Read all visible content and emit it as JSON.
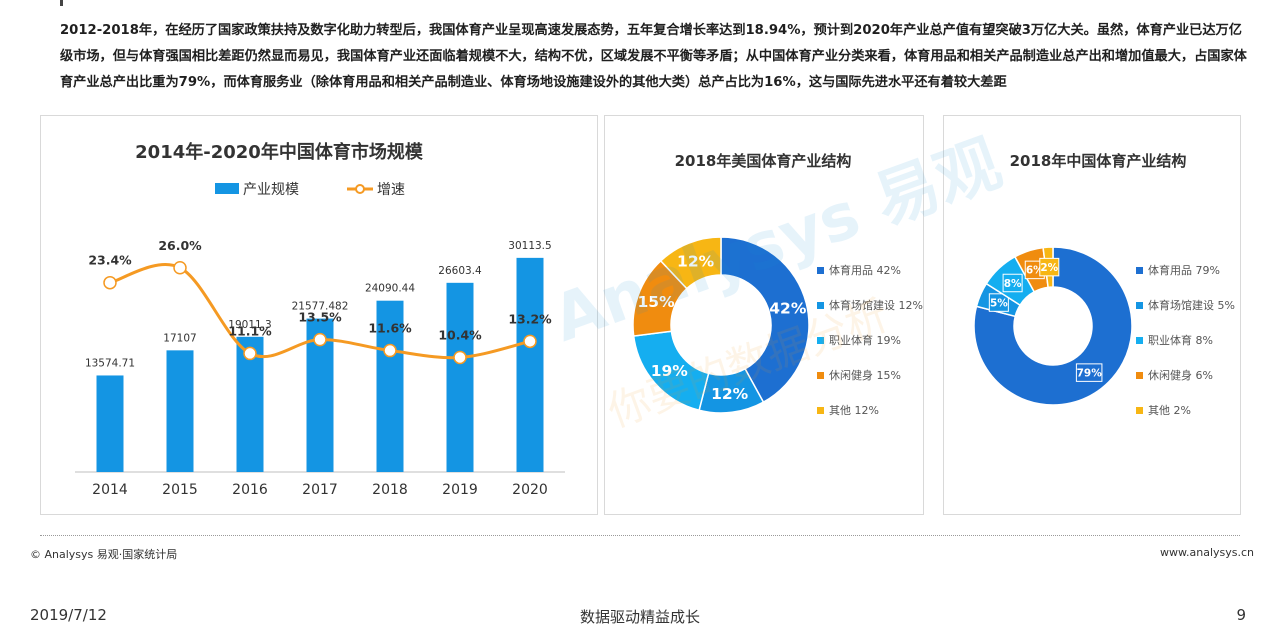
{
  "intro": "2012-2018年，在经历了国家政策扶持及数字化助力转型后，我国体育产业呈现高速发展态势，五年复合增长率达到18.94%，预计到2020年产业总产值有望突破3万亿大关。虽然，体育产业已达万亿级市场，但与体育强国相比差距仍然显而易见，我国体育产业还面临着规模不大，结构不优，区域发展不平衡等矛盾；从中国体育产业分类来看，体育用品和相关产品制造业总产出和增加值最大，占国家体育产业总产出比重为79%，而体育服务业（除体育用品和相关产品制造业、体育场地设施建设外的其他大类）总产占比为16%，这与国际先进水平还有着较大差距",
  "watermark": {
    "brand": "Analysys 易观",
    "slogan": "你要的数据分析"
  },
  "chart_data": [
    {
      "type": "bar",
      "title": "2014年-2020年中国体育市场规模",
      "legend": [
        "产业规模",
        "增速"
      ],
      "categories": [
        "2014",
        "2015",
        "2016",
        "2017",
        "2018",
        "2019",
        "2020"
      ],
      "series": [
        {
          "name": "产业规模",
          "type": "bar",
          "values": [
            13574.71,
            17107,
            19011.3,
            21577.482,
            24090.44,
            26603.4,
            30113.5
          ],
          "labels": [
            "13574.71",
            "17107",
            "19011.3",
            "21577.482",
            "24090.44",
            "26603.4",
            "30113.5"
          ]
        },
        {
          "name": "增速",
          "type": "line",
          "values": [
            23.4,
            26.0,
            11.1,
            13.5,
            11.6,
            10.4,
            13.2
          ],
          "labels": [
            "23.4%",
            "26.0%",
            "11.1%",
            "13.5%",
            "11.6%",
            "10.4%",
            "13.2%"
          ]
        }
      ],
      "ylim_bar": [
        0,
        45000
      ],
      "ylim_line": [
        -5,
        35
      ],
      "colors": {
        "bar": "#1495e3",
        "line": "#f59a23"
      }
    },
    {
      "type": "pie",
      "title": "2018年美国体育产业结构",
      "slices": [
        {
          "label": "体育用品",
          "value": 42,
          "text": "42%",
          "legend": "体育用品 42%",
          "color": "#1d6fd1"
        },
        {
          "label": "体育场馆建设",
          "value": 12,
          "text": "12%",
          "legend": "体育场馆建设 12%",
          "color": "#1495e3"
        },
        {
          "label": "职业体育",
          "value": 19,
          "text": "19%",
          "legend": "职业体育 19%",
          "color": "#15aef0"
        },
        {
          "label": "休闲健身",
          "value": 15,
          "text": "15%",
          "legend": "休闲健身 15%",
          "color": "#f08c0f"
        },
        {
          "label": "其他",
          "value": 12,
          "text": "12%",
          "legend": "其他 12%",
          "color": "#f7b614"
        }
      ]
    },
    {
      "type": "pie",
      "title": "2018年中国体育产业结构",
      "slices": [
        {
          "label": "体育用品",
          "value": 79,
          "text": "79%",
          "legend": "体育用品 79%",
          "color": "#1d6fd1"
        },
        {
          "label": "体育场馆建设",
          "value": 5,
          "text": "5%",
          "legend": "体育场馆建设 5%",
          "color": "#1495e3"
        },
        {
          "label": "职业体育",
          "value": 8,
          "text": "8%",
          "legend": "职业体育 8%",
          "color": "#15aef0"
        },
        {
          "label": "休闲健身",
          "value": 6,
          "text": "6%",
          "legend": "休闲健身 6%",
          "color": "#f08c0f"
        },
        {
          "label": "其他",
          "value": 2,
          "text": "2%",
          "legend": "其他 2%",
          "color": "#f7b614"
        }
      ]
    }
  ],
  "footer": {
    "source": "© Analysys 易观·国家统计局",
    "site": "www.analysys.cn",
    "date": "2019/7/12",
    "slogan": "数据驱动精益成长",
    "page": "9"
  }
}
